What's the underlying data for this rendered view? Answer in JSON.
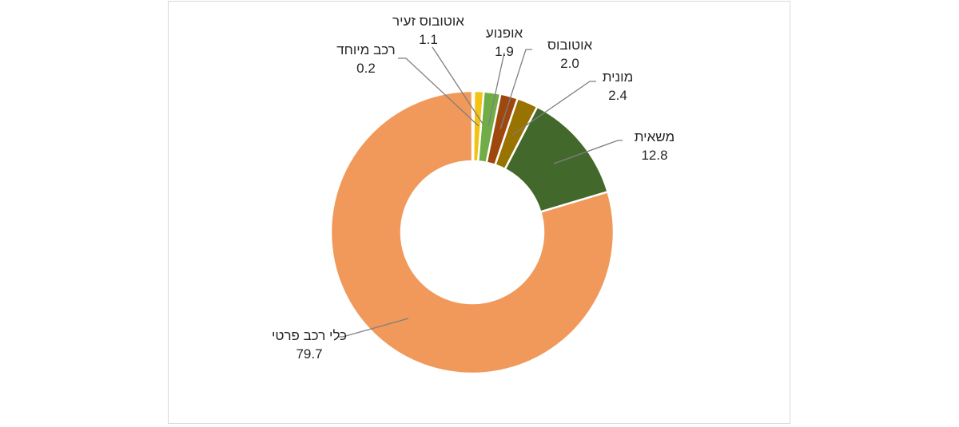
{
  "chart_data": {
    "type": "pie",
    "variant": "donut",
    "slices": [
      {
        "name": "רכב מיוחד",
        "value": 0.2,
        "label_value": "0.2",
        "color": "#FFC000"
      },
      {
        "name": "אוטובוס זעיר",
        "value": 1.1,
        "label_value": "1.1",
        "color": "#F2C314"
      },
      {
        "name": "אופנוע",
        "value": 1.9,
        "label_value": "1.9",
        "color": "#70AD47"
      },
      {
        "name": "אוטובוס",
        "value": 2.0,
        "label_value": "2.0",
        "color": "#9E480E"
      },
      {
        "name": "מונית",
        "value": 2.4,
        "label_value": "2.4",
        "color": "#997300"
      },
      {
        "name": "משאית",
        "value": 12.8,
        "label_value": "12.8",
        "color": "#43682B"
      },
      {
        "name": "כלי רכב פרטי",
        "value": 79.7,
        "label_value": "79.7",
        "color": "#F0995A"
      }
    ],
    "legend": "none",
    "data_labels": "outside-with-leader-lines"
  }
}
